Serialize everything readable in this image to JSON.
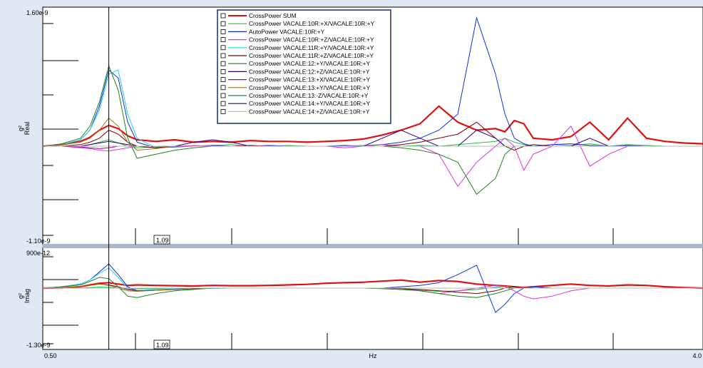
{
  "chart_data": {
    "type": "line",
    "x_unit_label": "Hz",
    "x_range": [
      0.5,
      4.0
    ],
    "x_tick_labels": [
      "0.50",
      "4.0"
    ],
    "cursor": {
      "x": 0.85,
      "label": "1.09"
    },
    "panels": [
      {
        "name": "real",
        "ylabel": "Real",
        "yunit": "g²",
        "ylim": [
          -1.1e-09,
          1.6e-09
        ],
        "ytick_labels": [
          "1.60e-9",
          "-1.10e-9"
        ]
      },
      {
        "name": "imag",
        "ylabel": "Imag",
        "yunit": "g²",
        "ylim": [
          -1.3e-09,
          9e-10
        ],
        "ytick_labels": [
          "900e-12",
          "-1.30e-9"
        ]
      }
    ],
    "x": [
      0.5,
      0.6,
      0.7,
      0.75,
      0.8,
      0.85,
      0.9,
      0.95,
      1.0,
      1.1,
      1.2,
      1.3,
      1.4,
      1.5,
      1.6,
      1.7,
      1.8,
      1.9,
      2.0,
      2.1,
      2.2,
      2.3,
      2.4,
      2.5,
      2.6,
      2.7,
      2.8,
      2.9,
      2.95,
      3.0,
      3.05,
      3.1,
      3.2,
      3.3,
      3.4,
      3.5,
      3.6,
      3.7,
      3.8,
      3.9,
      4.0
    ],
    "series": [
      {
        "name": "CrossPower SUM",
        "color": "#e01010",
        "width": 2.2,
        "real": [
          0.0,
          0.02,
          0.06,
          0.11,
          0.2,
          0.26,
          0.22,
          0.13,
          0.08,
          0.06,
          0.08,
          0.05,
          0.06,
          0.05,
          0.07,
          0.06,
          0.06,
          0.05,
          0.06,
          0.07,
          0.09,
          0.14,
          0.2,
          0.28,
          0.5,
          0.3,
          0.2,
          0.22,
          0.18,
          0.32,
          0.28,
          0.1,
          0.08,
          0.12,
          0.3,
          0.08,
          0.35,
          0.1,
          0.06,
          0.04,
          0.03
        ],
        "imag": [
          0.0,
          0.01,
          0.05,
          0.12,
          0.18,
          0.2,
          0.15,
          0.1,
          0.12,
          0.1,
          0.09,
          0.08,
          0.1,
          0.09,
          0.09,
          0.1,
          0.12,
          0.14,
          0.18,
          0.2,
          0.22,
          0.26,
          0.3,
          0.22,
          0.28,
          0.25,
          0.15,
          0.1,
          0.08,
          0.05,
          0.02,
          0.05,
          0.1,
          0.15,
          0.1,
          0.08,
          0.12,
          0.1,
          0.05,
          0.02,
          0.0
        ]
      },
      {
        "name": "CrossPower VACALE:10R:+X/VACALE:10R:+Y",
        "color": "#20c040",
        "width": 1,
        "real": [
          0.0,
          0.0,
          0.0,
          0.02,
          0.05,
          0.08,
          0.04,
          0.0,
          -0.02,
          -0.01,
          0.0,
          0.0,
          0.01,
          0.02,
          0.0,
          0.0,
          0.01,
          0.0,
          0.0,
          0.0,
          0.01,
          0.02,
          0.0,
          0.01,
          0.0,
          0.02,
          0.04,
          0.06,
          0.1,
          0.05,
          0.02,
          0.0,
          0.02,
          0.01,
          0.03,
          0.0,
          0.02,
          0.01,
          0.0,
          0.0,
          0.0
        ],
        "imag": [
          0.0,
          0.0,
          0.0,
          0.02,
          0.04,
          0.03,
          0.0,
          -0.04,
          -0.03,
          -0.02,
          -0.01,
          0.0,
          0.0,
          0.0,
          0.0,
          0.0,
          0.0,
          0.0,
          0.0,
          0.0,
          0.0,
          -0.02,
          -0.05,
          -0.08,
          -0.12,
          -0.1,
          -0.05,
          0.03,
          0.06,
          0.04,
          0.0,
          0.0,
          0.0,
          0.0,
          0.0,
          0.0,
          0.0,
          0.0,
          0.0,
          0.0,
          0.0
        ]
      },
      {
        "name": "AutoPower VACALE:10R:+Y",
        "color": "#1030d8",
        "width": 1,
        "real": [
          0.0,
          0.02,
          0.08,
          0.2,
          0.5,
          0.95,
          0.85,
          0.3,
          0.05,
          -0.02,
          -0.01,
          0.0,
          0.01,
          0.0,
          0.0,
          0.01,
          0.0,
          0.0,
          0.0,
          0.01,
          0.0,
          0.02,
          0.05,
          0.1,
          0.2,
          0.4,
          1.6,
          0.9,
          0.4,
          0.1,
          0.03,
          0.0,
          0.02,
          0.03,
          0.01,
          0.0,
          0.01,
          0.0,
          0.0,
          0.0,
          0.0
        ],
        "imag": [
          0.0,
          0.05,
          0.15,
          0.3,
          0.6,
          0.9,
          0.5,
          0.05,
          -0.1,
          -0.08,
          -0.05,
          -0.02,
          -0.01,
          0.0,
          0.0,
          0.0,
          0.0,
          0.0,
          0.0,
          0.0,
          0.0,
          0.0,
          0.05,
          0.1,
          0.2,
          0.5,
          0.85,
          -0.9,
          -0.6,
          -0.2,
          0.0,
          0.05,
          0.0,
          0.0,
          0.0,
          0.0,
          0.0,
          0.0,
          0.0,
          0.0,
          0.0
        ]
      },
      {
        "name": "CrossPower VACALE:10R:+Z/VACALE:10R:+Y",
        "color": "#e030e0",
        "width": 1,
        "real": [
          0.0,
          0.0,
          -0.02,
          -0.03,
          -0.05,
          -0.06,
          -0.04,
          -0.02,
          0.0,
          0.0,
          0.0,
          0.01,
          0.0,
          0.0,
          0.0,
          0.0,
          0.0,
          0.0,
          0.0,
          -0.02,
          0.0,
          0.02,
          0.0,
          0.0,
          -0.1,
          -0.5,
          -0.2,
          0.0,
          0.1,
          0.0,
          -0.3,
          -0.1,
          0.0,
          0.25,
          -0.25,
          -0.1,
          0.0,
          0.0,
          0.0,
          0.0,
          0.0
        ],
        "imag": [
          0.0,
          0.0,
          0.0,
          0.0,
          0.0,
          0.0,
          0.0,
          0.0,
          0.0,
          0.0,
          0.0,
          0.0,
          0.0,
          0.0,
          0.0,
          0.0,
          0.0,
          0.0,
          0.0,
          0.0,
          0.0,
          0.0,
          0.0,
          -0.1,
          -0.2,
          -0.1,
          0.0,
          0.1,
          0.05,
          -0.1,
          -0.3,
          -0.4,
          -0.3,
          -0.1,
          0.0,
          0.0,
          0.0,
          0.0,
          0.0,
          0.0,
          0.0
        ]
      },
      {
        "name": "CrossPower VACALE:11R:+Y/VACALE:10R:+Y",
        "color": "#20d0f0",
        "width": 1,
        "real": [
          0.0,
          0.02,
          0.08,
          0.2,
          0.45,
          0.9,
          0.95,
          0.4,
          0.1,
          -0.02,
          0.0,
          0.0,
          0.0,
          0.0,
          0.0,
          0.0,
          0.0,
          0.0,
          0.0,
          0.0,
          0.0,
          0.0,
          0.0,
          0.0,
          0.0,
          0.0,
          0.0,
          0.0,
          0.0,
          0.0,
          0.0,
          0.0,
          0.0,
          0.0,
          0.0,
          0.0,
          0.0,
          0.0,
          0.0,
          0.0,
          0.0
        ],
        "imag": [
          0.0,
          0.05,
          0.15,
          0.3,
          0.55,
          0.75,
          0.4,
          0.0,
          -0.1,
          -0.05,
          -0.02,
          0.0,
          0.0,
          0.0,
          0.0,
          0.0,
          0.0,
          0.0,
          0.0,
          0.0,
          0.0,
          0.0,
          0.0,
          0.0,
          0.0,
          0.0,
          0.0,
          0.0,
          0.0,
          0.0,
          0.0,
          0.0,
          0.0,
          0.0,
          0.0,
          0.0,
          0.0,
          0.0,
          0.0,
          0.0,
          0.0
        ]
      },
      {
        "name": "CrossPower VACALE:11R:+Z/VACALE:10R:+Y",
        "color": "#800000",
        "width": 1,
        "real": [
          0.0,
          0.0,
          0.02,
          0.05,
          0.1,
          0.2,
          0.15,
          0.05,
          0.0,
          -0.02,
          0.0,
          0.0,
          0.0,
          0.0,
          0.01,
          0.0,
          0.0,
          0.0,
          0.0,
          0.0,
          0.0,
          0.0,
          0.02,
          0.05,
          0.1,
          0.15,
          0.3,
          0.1,
          0.0,
          -0.05,
          0.0,
          0.02,
          0.0,
          0.0,
          0.0,
          0.0,
          0.0,
          0.0,
          0.0,
          0.0,
          0.0
        ],
        "imag": [
          0.0,
          0.0,
          0.05,
          0.1,
          0.15,
          0.12,
          0.05,
          -0.05,
          -0.1,
          -0.08,
          -0.05,
          -0.02,
          0.0,
          0.0,
          0.0,
          0.0,
          0.0,
          0.0,
          0.0,
          0.0,
          0.0,
          0.0,
          -0.02,
          -0.05,
          -0.1,
          -0.15,
          -0.2,
          -0.1,
          0.0,
          0.05,
          0.0,
          0.0,
          0.0,
          0.0,
          0.0,
          0.0,
          0.0,
          0.0,
          0.0,
          0.0,
          0.0
        ]
      },
      {
        "name": "CrossPower VACALE:12:+Y/VACALE:10R:+Y",
        "color": "#208020",
        "width": 1,
        "real": [
          0.0,
          0.03,
          0.1,
          0.25,
          0.55,
          1.0,
          0.7,
          0.1,
          -0.15,
          -0.1,
          -0.05,
          -0.02,
          0.0,
          0.0,
          0.0,
          0.0,
          0.0,
          0.0,
          0.0,
          0.0,
          0.0,
          0.0,
          -0.02,
          -0.05,
          -0.1,
          -0.2,
          -0.6,
          -0.4,
          -0.1,
          0.0,
          0.0,
          0.0,
          0.0,
          0.0,
          0.0,
          0.0,
          0.0,
          0.0,
          0.0,
          0.0,
          0.0
        ],
        "imag": [
          0.0,
          0.05,
          0.12,
          0.25,
          0.4,
          0.35,
          0.05,
          -0.3,
          -0.35,
          -0.2,
          -0.1,
          -0.05,
          0.0,
          0.0,
          0.0,
          0.0,
          0.0,
          0.0,
          0.0,
          0.0,
          0.0,
          -0.02,
          -0.05,
          -0.1,
          -0.2,
          -0.3,
          -0.35,
          -0.2,
          -0.1,
          0.0,
          0.0,
          0.0,
          0.0,
          0.0,
          0.0,
          0.0,
          0.0,
          0.0,
          0.0,
          0.0,
          0.0
        ]
      },
      {
        "name": "CrossPower VACALE:12:+Z/VACALE:10R:+Y",
        "color": "#300080",
        "width": 1,
        "real": [
          0.0,
          0.0,
          0.0,
          0.02,
          0.04,
          0.06,
          0.04,
          0.02,
          0.0,
          0.0,
          0.0,
          0.05,
          0.08,
          0.05,
          0.0,
          0.0,
          0.0,
          0.0,
          0.0,
          0.0,
          0.0,
          0.1,
          0.2,
          0.1,
          0.0,
          0.0,
          0.2,
          0.1,
          0.0,
          0.0,
          0.0,
          0.0,
          0.0,
          0.0,
          0.1,
          0.0,
          0.0,
          0.0,
          0.0,
          0.0,
          0.0
        ],
        "imag": [
          0.0,
          0.0,
          0.0,
          0.0,
          0.0,
          0.0,
          0.0,
          0.0,
          0.0,
          0.0,
          0.0,
          0.0,
          0.0,
          0.0,
          0.0,
          0.0,
          0.0,
          0.0,
          0.0,
          0.0,
          0.0,
          0.0,
          0.0,
          0.0,
          0.0,
          0.0,
          0.0,
          0.0,
          0.0,
          0.0,
          0.0,
          0.0,
          0.0,
          0.0,
          0.0,
          0.0,
          0.0,
          0.0,
          0.0,
          0.0,
          0.0
        ]
      },
      {
        "name": "CrossPower VACALE:13:+X/VACALE:10R:+Y",
        "color": "#a000a0",
        "width": 1,
        "real": [
          0.0,
          0.0,
          -0.01,
          -0.02,
          -0.03,
          -0.02,
          0.0,
          0.0,
          0.0,
          0.0,
          0.0,
          0.0,
          0.0,
          0.0,
          0.0,
          0.0,
          0.0,
          0.0,
          0.0,
          0.0,
          0.0,
          0.0,
          0.0,
          0.0,
          0.0,
          0.0,
          0.0,
          0.0,
          0.0,
          0.0,
          0.0,
          0.0,
          0.0,
          0.0,
          0.0,
          0.0,
          0.0,
          0.0,
          0.0,
          0.0,
          0.0
        ],
        "imag": [
          0.0,
          0.0,
          0.0,
          0.0,
          0.0,
          0.0,
          0.0,
          0.0,
          0.0,
          0.0,
          0.0,
          0.0,
          0.0,
          0.0,
          0.0,
          0.0,
          0.0,
          0.0,
          0.0,
          0.0,
          0.0,
          0.0,
          0.0,
          0.0,
          0.0,
          0.0,
          0.0,
          0.0,
          0.0,
          0.0,
          0.0,
          0.0,
          0.0,
          0.0,
          0.0,
          0.0,
          0.0,
          0.0,
          0.0,
          0.0,
          0.0
        ]
      },
      {
        "name": "CrossPower VACALE:13:+Y/VACALE:10R:+Y",
        "color": "#a07020",
        "width": 1,
        "real": [
          0.0,
          0.02,
          0.05,
          0.1,
          0.2,
          0.35,
          0.25,
          0.05,
          -0.05,
          -0.03,
          0.0,
          0.0,
          0.0,
          0.0,
          0.0,
          0.0,
          0.0,
          0.0,
          0.0,
          0.0,
          0.0,
          0.0,
          0.0,
          0.0,
          0.0,
          0.0,
          0.0,
          0.0,
          0.0,
          0.0,
          0.0,
          0.0,
          0.0,
          0.0,
          0.0,
          0.0,
          0.0,
          0.0,
          0.0,
          0.0,
          0.0
        ],
        "imag": [
          0.0,
          0.02,
          0.05,
          0.1,
          0.15,
          0.1,
          0.0,
          -0.1,
          -0.12,
          -0.08,
          -0.04,
          0.0,
          0.0,
          0.0,
          0.0,
          0.0,
          0.0,
          0.0,
          0.0,
          0.0,
          0.0,
          0.0,
          0.0,
          0.0,
          0.0,
          0.0,
          0.0,
          0.0,
          0.0,
          0.0,
          0.0,
          0.0,
          0.0,
          0.0,
          0.0,
          0.0,
          0.0,
          0.0,
          0.0,
          0.0,
          0.0
        ]
      },
      {
        "name": "CrossPower VACALE:13:-Z/VACALE:10R:+Y",
        "color": "#207878",
        "width": 1,
        "real": [
          0.0,
          0.0,
          0.0,
          0.0,
          0.0,
          0.0,
          0.0,
          0.0,
          0.0,
          0.0,
          0.0,
          0.0,
          0.0,
          0.0,
          0.0,
          0.0,
          0.0,
          0.0,
          0.0,
          0.0,
          0.0,
          0.0,
          0.0,
          0.0,
          0.0,
          0.0,
          0.0,
          0.0,
          0.0,
          0.0,
          0.0,
          0.0,
          0.0,
          0.0,
          0.0,
          0.0,
          0.0,
          0.0,
          0.0,
          0.0,
          0.0
        ],
        "imag": [
          0.0,
          0.0,
          0.0,
          0.0,
          0.0,
          0.0,
          0.0,
          0.0,
          0.0,
          0.0,
          0.0,
          0.0,
          0.0,
          0.0,
          0.0,
          0.0,
          0.0,
          0.0,
          0.0,
          0.0,
          0.0,
          0.0,
          0.0,
          0.0,
          0.0,
          0.0,
          0.0,
          0.0,
          0.0,
          0.0,
          0.0,
          0.0,
          0.0,
          0.0,
          0.0,
          0.0,
          0.0,
          0.0,
          0.0,
          0.0,
          0.0
        ]
      },
      {
        "name": "CrossPower VACALE:14:+Y/VACALE:10R:+Y",
        "color": "#101060",
        "width": 1,
        "real": [
          0.0,
          0.0,
          0.0,
          0.0,
          0.0,
          0.0,
          0.0,
          0.0,
          0.0,
          0.0,
          0.0,
          0.0,
          0.0,
          0.0,
          0.0,
          0.0,
          0.0,
          0.0,
          0.0,
          0.0,
          0.0,
          0.0,
          0.0,
          0.0,
          0.0,
          0.0,
          0.0,
          0.0,
          0.0,
          0.0,
          0.0,
          0.0,
          0.0,
          0.0,
          0.0,
          0.0,
          0.0,
          0.0,
          0.0,
          0.0,
          0.0
        ],
        "imag": [
          0.0,
          0.0,
          0.0,
          0.0,
          0.0,
          0.0,
          0.0,
          0.0,
          0.0,
          0.0,
          0.0,
          0.0,
          0.0,
          0.0,
          0.0,
          0.0,
          0.0,
          0.0,
          0.0,
          0.0,
          0.0,
          0.0,
          0.0,
          0.0,
          0.0,
          0.0,
          0.0,
          0.0,
          0.0,
          0.0,
          0.0,
          0.0,
          0.0,
          0.0,
          0.0,
          0.0,
          0.0,
          0.0,
          0.0,
          0.0,
          0.0
        ]
      },
      {
        "name": "CrossPower VACALE:14:+Z/VACALE:10R:+Y",
        "color": "#b8b8b8",
        "width": 1,
        "real": [
          0.0,
          0.0,
          0.0,
          0.0,
          0.0,
          0.0,
          0.0,
          0.0,
          0.0,
          0.0,
          0.0,
          0.0,
          0.0,
          0.0,
          0.0,
          0.0,
          0.0,
          0.0,
          0.0,
          0.0,
          0.0,
          0.0,
          0.0,
          0.0,
          0.0,
          0.0,
          0.0,
          0.0,
          0.0,
          0.0,
          0.0,
          0.0,
          0.0,
          0.0,
          0.0,
          0.0,
          0.0,
          0.0,
          0.0,
          0.0,
          0.0
        ],
        "imag": [
          0.0,
          0.0,
          0.0,
          0.0,
          0.0,
          0.0,
          0.0,
          0.0,
          0.0,
          0.0,
          0.0,
          0.0,
          0.0,
          0.0,
          0.0,
          0.0,
          0.0,
          0.0,
          0.0,
          0.0,
          0.0,
          0.0,
          0.0,
          0.0,
          0.0,
          0.0,
          0.0,
          0.0,
          0.0,
          0.0,
          0.0,
          0.0,
          0.0,
          0.0,
          0.0,
          0.0,
          0.0,
          0.0,
          0.0,
          0.0,
          0.0
        ]
      }
    ],
    "grid": false,
    "legend_position": "top-center"
  }
}
